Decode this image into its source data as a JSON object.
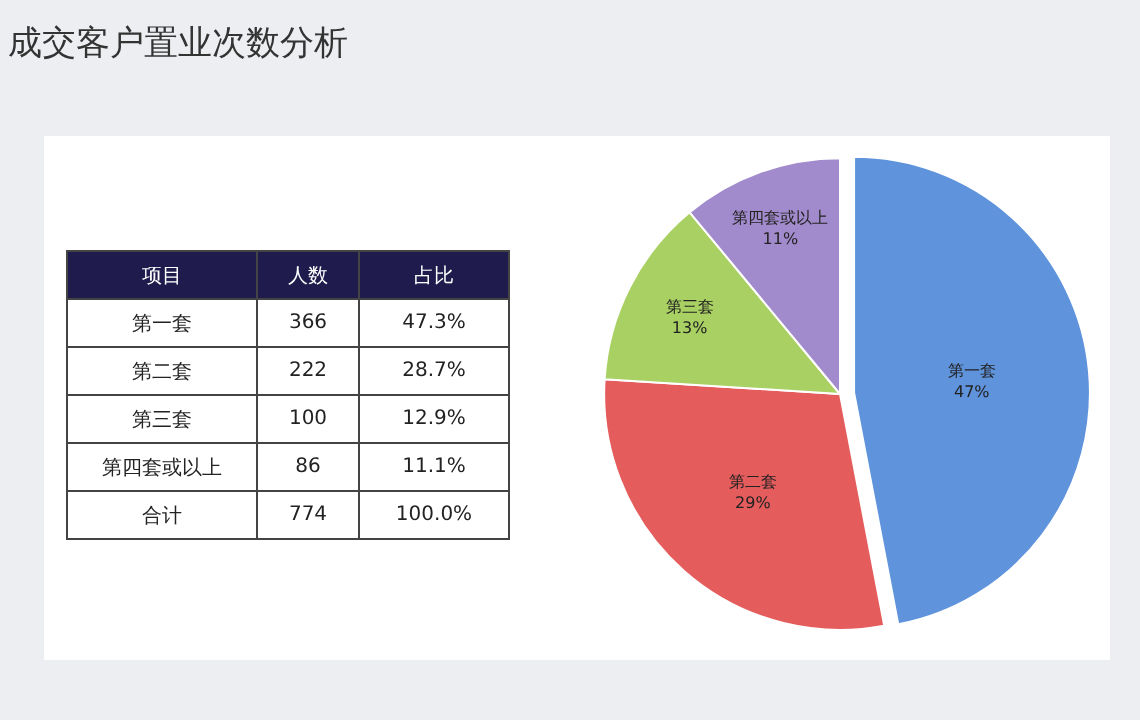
{
  "chart_data": [
    {
      "type": "other",
      "data_labels": true,
      "title": "成交客户置业次数分析",
      "xlabel": "项目",
      "categories": [
        "第一套",
        "第二套",
        "第三套",
        "第四套或以上",
        "合计"
      ],
      "series": [
        {
          "name": "人数",
          "values": [
            366,
            222,
            100,
            86,
            774
          ]
        },
        {
          "name": "占比",
          "values": [
            47.3,
            28.7,
            12.9,
            11.1,
            100.0
          ],
          "value_labels": [
            "47.3%",
            "28.7%",
            "12.9%",
            "11.1%",
            "100.0%"
          ]
        }
      ]
    },
    {
      "type": "pie",
      "categories": [
        "第一套",
        "第二套",
        "第三套",
        "第四套或以上"
      ],
      "values": [
        47,
        29,
        13,
        11
      ],
      "colors": [
        "#5f93dc",
        "#e55c5c",
        "#a9d063",
        "#a28bcc"
      ],
      "value_labels": [
        "47%",
        "29%",
        "13%",
        "11%"
      ]
    }
  ]
}
